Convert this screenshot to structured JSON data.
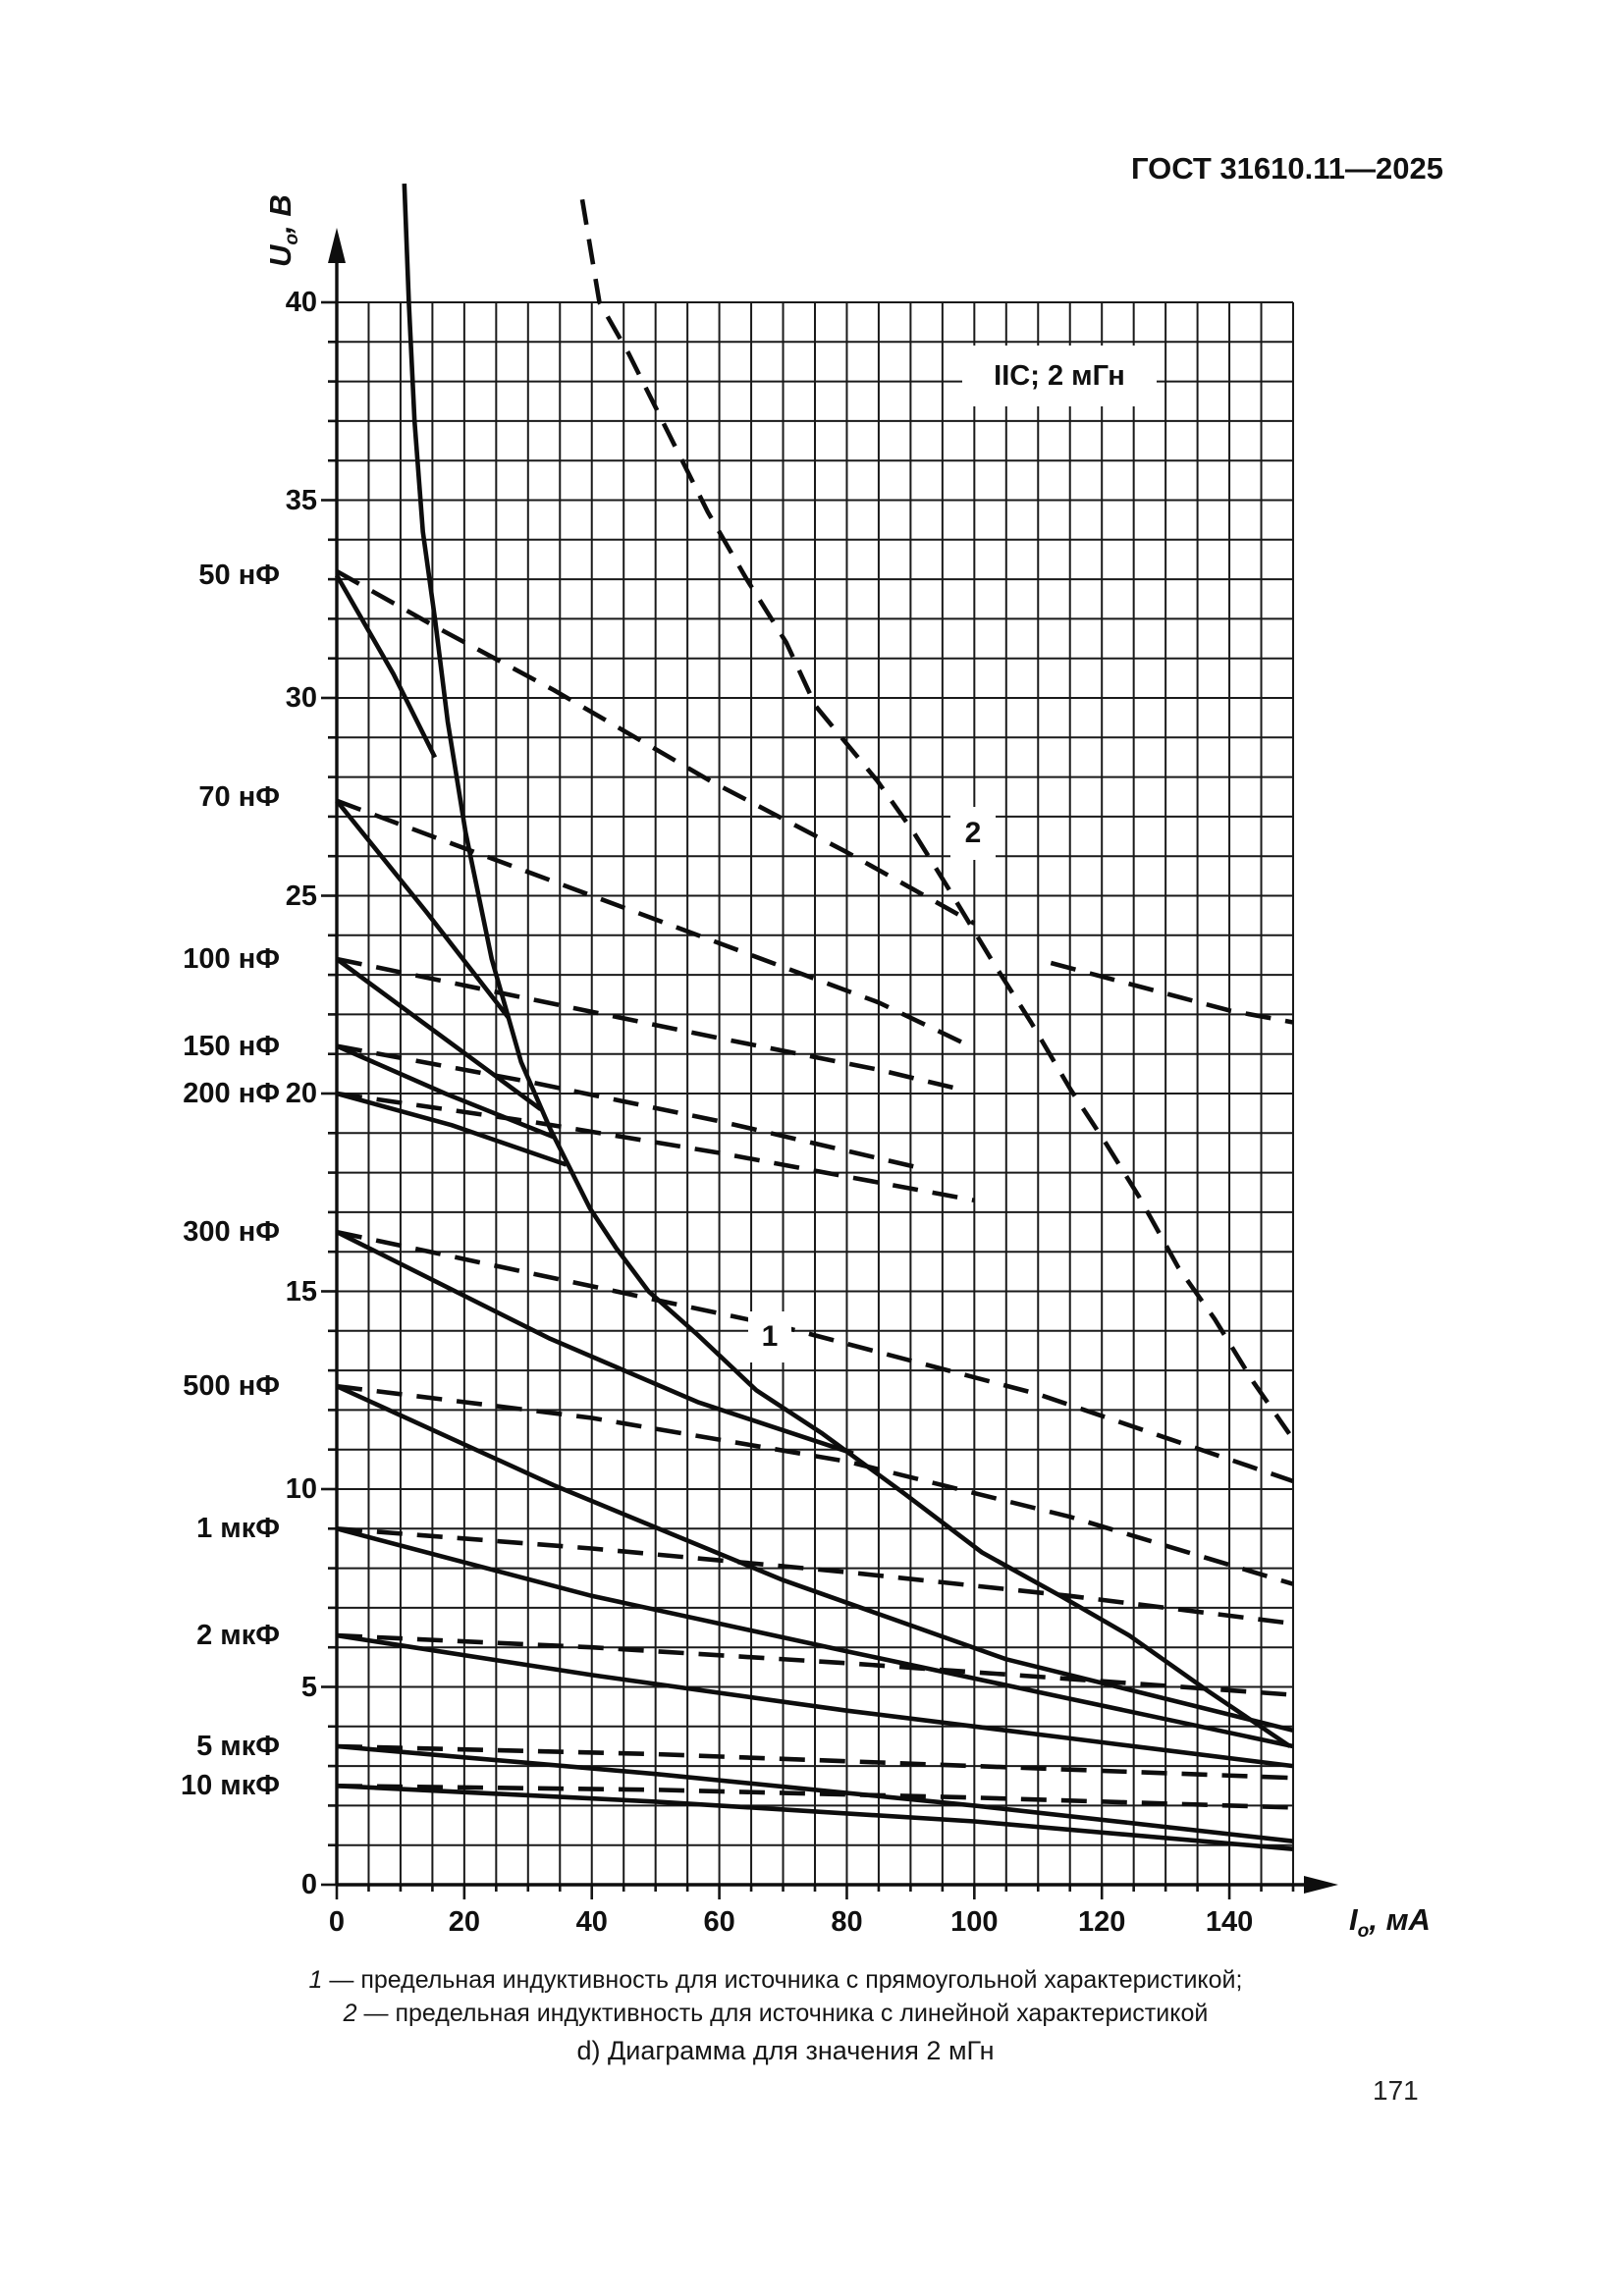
{
  "page": {
    "header": "ГОСТ 31610.11—2025",
    "page_number": "171",
    "legend": [
      {
        "num": "1",
        "text": "— предельная индуктивность для источника с прямоугольной характеристикой;"
      },
      {
        "num": "2",
        "text": "— предельная индуктивность для источника с линейной характеристикой"
      }
    ],
    "caption": "d) Диаграмма для значения 2 мГн"
  },
  "chart_data": {
    "type": "line",
    "annotation_box": "IIC; 2 мГн",
    "xlabel": {
      "sym": "I",
      "sub": "o",
      "unit": ", мА"
    },
    "ylabel": {
      "sym": "U",
      "sub": "o",
      "unit": ", В"
    },
    "xlim": [
      0,
      150
    ],
    "ylim": [
      0,
      40
    ],
    "x_major_ticks": [
      0,
      20,
      40,
      60,
      80,
      100,
      120,
      140
    ],
    "x_minor_step": 5,
    "y_major_ticks": [
      0,
      5,
      10,
      15,
      20,
      25,
      30,
      35,
      40
    ],
    "y_minor_step": 1,
    "grid": "on",
    "legend_position": "bottom",
    "curve_point_labels": [
      {
        "text": "1",
        "I": 68,
        "U": 13.8
      },
      {
        "text": "2",
        "I": 100,
        "U": 26.6
      }
    ],
    "left_labels": [
      {
        "text": "50 нФ",
        "U": 33.1
      },
      {
        "text": "70 нФ",
        "U": 27.5
      },
      {
        "text": "100 нФ",
        "U": 23.4
      },
      {
        "text": "150 нФ",
        "U": 21.2
      },
      {
        "text": "200 нФ",
        "U": 20.0
      },
      {
        "text": "300 нФ",
        "U": 16.5
      },
      {
        "text": "500 нФ",
        "U": 12.6
      },
      {
        "text": "1 мкФ",
        "U": 9.0
      },
      {
        "text": "2 мкФ",
        "U": 6.3
      },
      {
        "text": "5 мкФ",
        "U": 3.5
      },
      {
        "text": "10 мкФ",
        "U": 2.5
      }
    ],
    "series": [
      {
        "name": "limit-1-rectangular",
        "label": "1",
        "style": "solid",
        "points": [
          [
            10.6,
            43
          ],
          [
            11.3,
            40
          ],
          [
            12.2,
            37
          ],
          [
            13.5,
            34.2
          ],
          [
            15.4,
            32
          ],
          [
            17.4,
            29.4
          ],
          [
            20.2,
            26.6
          ],
          [
            24.3,
            23.4
          ],
          [
            28.9,
            20.8
          ],
          [
            33.5,
            19.1
          ],
          [
            39.7,
            17.1
          ],
          [
            43.8,
            16.1
          ],
          [
            48.9,
            15
          ],
          [
            56.6,
            13.9
          ],
          [
            65.8,
            12.5
          ],
          [
            76.2,
            11.4
          ],
          [
            88.9,
            9.9
          ],
          [
            101.2,
            8.4
          ],
          [
            113.5,
            7.3
          ],
          [
            124.3,
            6.3
          ],
          [
            136.6,
            4.9
          ],
          [
            149.5,
            3.5
          ]
        ]
      },
      {
        "name": "limit-2-linear",
        "label": "2",
        "style": "dashed",
        "points": [
          [
            38.5,
            42.6
          ],
          [
            41.2,
            40
          ],
          [
            45.8,
            38.7
          ],
          [
            52,
            36.7
          ],
          [
            58.2,
            34.7
          ],
          [
            64.3,
            33
          ],
          [
            70.5,
            31.4
          ],
          [
            75.1,
            29.8
          ],
          [
            84.8,
            27.9
          ],
          [
            90.5,
            26.6
          ],
          [
            95.5,
            25.3
          ],
          [
            103,
            23.3
          ],
          [
            108.9,
            21.8
          ],
          [
            115.1,
            20.1
          ],
          [
            120.8,
            18.7
          ],
          [
            125.8,
            17.4
          ],
          [
            132,
            15.6
          ],
          [
            137.7,
            14.3
          ],
          [
            143.8,
            12.7
          ],
          [
            149.4,
            11.4
          ]
        ]
      },
      {
        "name": "c-50nF-rect",
        "label": "50 нФ",
        "style": "solid",
        "points": [
          [
            0,
            33.1
          ],
          [
            8.9,
            30.6
          ],
          [
            15.4,
            28.5
          ]
        ]
      },
      {
        "name": "c-70nF-rect",
        "label": "70 нФ",
        "style": "solid",
        "points": [
          [
            0,
            27.4
          ],
          [
            14,
            24.6
          ],
          [
            27,
            21.9
          ]
        ]
      },
      {
        "name": "c-100nF-rect",
        "label": "100 нФ",
        "style": "solid",
        "points": [
          [
            0,
            23.4
          ],
          [
            16,
            21.5
          ],
          [
            32,
            19.6
          ]
        ]
      },
      {
        "name": "c-150nF-rect",
        "label": "150 нФ",
        "style": "solid",
        "points": [
          [
            0,
            21.2
          ],
          [
            17,
            20
          ],
          [
            34,
            18.9
          ]
        ]
      },
      {
        "name": "c-200nF-rect",
        "label": "200 нФ",
        "style": "solid",
        "points": [
          [
            0,
            20
          ],
          [
            18,
            19.2
          ],
          [
            36,
            18.2
          ]
        ]
      },
      {
        "name": "c-300nF-rect",
        "label": "300 нФ",
        "style": "solid",
        "points": [
          [
            0,
            16.5
          ],
          [
            33.5,
            13.8
          ],
          [
            56.6,
            12.2
          ],
          [
            81,
            10.9
          ]
        ]
      },
      {
        "name": "c-500nF-rect",
        "label": "500 нФ",
        "style": "solid",
        "points": [
          [
            0,
            12.6
          ],
          [
            34,
            10.1
          ],
          [
            70,
            7.7
          ],
          [
            105,
            5.7
          ],
          [
            150,
            3.9
          ]
        ]
      },
      {
        "name": "c-1uF-rect",
        "label": "1 мкФ",
        "style": "solid",
        "points": [
          [
            0,
            9
          ],
          [
            40,
            7.3
          ],
          [
            80,
            5.9
          ],
          [
            115,
            4.7
          ],
          [
            150,
            3.5
          ]
        ]
      },
      {
        "name": "c-2uF-rect",
        "label": "2 мкФ",
        "style": "solid",
        "points": [
          [
            0,
            6.3
          ],
          [
            40,
            5.3
          ],
          [
            80,
            4.4
          ],
          [
            115,
            3.7
          ],
          [
            150,
            3
          ]
        ]
      },
      {
        "name": "c-5uF-rect",
        "label": "5 мкФ",
        "style": "solid",
        "points": [
          [
            0,
            3.5
          ],
          [
            50,
            2.8
          ],
          [
            100,
            2
          ],
          [
            150,
            1.1
          ]
        ]
      },
      {
        "name": "c-10uF-rect",
        "label": "10 мкФ",
        "style": "solid",
        "points": [
          [
            0,
            2.5
          ],
          [
            50,
            2.1
          ],
          [
            100,
            1.6
          ],
          [
            150,
            0.9
          ]
        ]
      },
      {
        "name": "c-50nF-lin",
        "label": "50 нФ",
        "style": "dashed",
        "points": [
          [
            0,
            33.2
          ],
          [
            15.5,
            31.8
          ],
          [
            34,
            30.2
          ],
          [
            58.6,
            27.9
          ],
          [
            80,
            26.1
          ],
          [
            100,
            24.3
          ]
        ]
      },
      {
        "name": "c-70nF-lin",
        "label": "70 нФ",
        "style": "dashed",
        "points": [
          [
            0,
            27.4
          ],
          [
            30,
            25.6
          ],
          [
            60,
            23.8
          ],
          [
            85,
            22.3
          ],
          [
            98,
            21.3
          ]
        ]
      },
      {
        "name": "c-100nF-lin",
        "label": "100 нФ",
        "style": "dashed",
        "points": [
          [
            0,
            23.4
          ],
          [
            30,
            22.4
          ],
          [
            60,
            21.4
          ],
          [
            85,
            20.6
          ],
          [
            98,
            20.1
          ]
        ]
      },
      {
        "name": "c-150nF-lin",
        "label": "150 нФ",
        "style": "dashed",
        "points": [
          [
            0,
            21.2
          ],
          [
            30,
            20.3
          ],
          [
            60,
            19.3
          ],
          [
            92,
            18.1
          ]
        ]
      },
      {
        "name": "c-200nF-lin",
        "label": "200 нФ",
        "style": "dashed",
        "points": [
          [
            0,
            20
          ],
          [
            30,
            19.3
          ],
          [
            60,
            18.5
          ],
          [
            100,
            17.3
          ]
        ]
      },
      {
        "name": "c-300nF-lin",
        "label": "300 нФ",
        "style": "dashed",
        "points": [
          [
            0,
            16.5
          ],
          [
            35,
            15.3
          ],
          [
            70,
            14.1
          ],
          [
            110,
            12.4
          ],
          [
            150,
            10.2
          ]
        ]
      },
      {
        "name": "c-500nF-lin",
        "label": "500 нФ",
        "style": "dashed",
        "points": [
          [
            0,
            12.6
          ],
          [
            40,
            11.8
          ],
          [
            80,
            10.7
          ],
          [
            115,
            9.3
          ],
          [
            150,
            7.6
          ]
        ]
      },
      {
        "name": "c-1uF-lin",
        "label": "1 мкФ",
        "style": "dashed",
        "points": [
          [
            0,
            9
          ],
          [
            40,
            8.5
          ],
          [
            80,
            7.9
          ],
          [
            115,
            7.3
          ],
          [
            150,
            6.6
          ]
        ]
      },
      {
        "name": "c-2uF-lin",
        "label": "2 мкФ",
        "style": "dashed",
        "points": [
          [
            0,
            6.3
          ],
          [
            40,
            6
          ],
          [
            80,
            5.6
          ],
          [
            115,
            5.2
          ],
          [
            150,
            4.8
          ]
        ]
      },
      {
        "name": "c-5uF-lin",
        "label": "5 мкФ",
        "style": "dashed",
        "points": [
          [
            0,
            3.5
          ],
          [
            50,
            3.3
          ],
          [
            100,
            3
          ],
          [
            150,
            2.7
          ]
        ]
      },
      {
        "name": "c-10uF-lin",
        "label": "10 мкФ",
        "style": "dashed",
        "points": [
          [
            0,
            2.5
          ],
          [
            50,
            2.4
          ],
          [
            100,
            2.2
          ],
          [
            150,
            1.95
          ]
        ]
      },
      {
        "name": "faint-artifact",
        "label": "",
        "style": "dashed",
        "color": "#b9b9b9",
        "points": [
          [
            112,
            23.3
          ],
          [
            140,
            22.1
          ],
          [
            150,
            21.8
          ]
        ]
      }
    ]
  }
}
